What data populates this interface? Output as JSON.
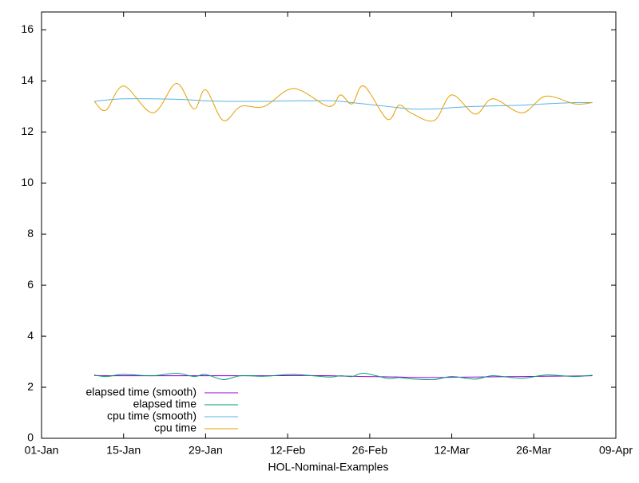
{
  "chart_data": {
    "type": "line",
    "xlabel": "HOL-Nominal-Examples",
    "x": [
      "10-Jan",
      "12-Jan",
      "15-Jan",
      "20-Jan",
      "24-Jan",
      "27-Jan",
      "29-Jan",
      "01-Feb",
      "04-Feb",
      "08-Feb",
      "13-Feb",
      "19-Feb",
      "21-Feb",
      "23-Feb",
      "25-Feb",
      "01-Mar",
      "03-Mar",
      "05-Mar",
      "09-Mar",
      "12-Mar",
      "16-Mar",
      "19-Mar",
      "24-Mar",
      "28-Mar",
      "02-Apr",
      "05-Apr"
    ],
    "series": [
      {
        "name": "elapsed time (smooth)",
        "color": "#9400d3",
        "values": [
          2.46,
          2.45,
          2.45,
          2.45,
          2.45,
          2.45,
          2.45,
          2.45,
          2.45,
          2.45,
          2.46,
          2.45,
          2.44,
          2.43,
          2.42,
          2.41,
          2.4,
          2.39,
          2.38,
          2.39,
          2.4,
          2.41,
          2.42,
          2.43,
          2.44,
          2.45
        ]
      },
      {
        "name": "elapsed time",
        "color": "#009e73",
        "values": [
          2.48,
          2.42,
          2.5,
          2.45,
          2.55,
          2.42,
          2.5,
          2.3,
          2.45,
          2.43,
          2.5,
          2.4,
          2.45,
          2.42,
          2.55,
          2.35,
          2.38,
          2.33,
          2.3,
          2.42,
          2.32,
          2.45,
          2.35,
          2.48,
          2.42,
          2.47
        ]
      },
      {
        "name": "cpu time (smooth)",
        "color": "#56b4e9",
        "values": [
          13.2,
          13.25,
          13.3,
          13.3,
          13.28,
          13.25,
          13.22,
          13.2,
          13.2,
          13.2,
          13.22,
          13.22,
          13.2,
          13.15,
          13.1,
          13.0,
          12.95,
          12.9,
          12.9,
          12.95,
          13.0,
          13.02,
          13.05,
          13.1,
          13.15,
          13.15
        ]
      },
      {
        "name": "cpu time",
        "color": "#e69f00",
        "values": [
          13.2,
          12.85,
          13.8,
          12.75,
          13.9,
          12.9,
          13.65,
          12.45,
          13.0,
          13.0,
          13.7,
          13.0,
          13.45,
          13.1,
          13.8,
          12.5,
          13.05,
          12.75,
          12.45,
          13.45,
          12.7,
          13.3,
          12.75,
          13.4,
          13.1,
          13.15
        ]
      }
    ],
    "xlim": [
      "01-Jan",
      "09-Apr"
    ],
    "xticks": [
      "01-Jan",
      "15-Jan",
      "29-Jan",
      "12-Feb",
      "26-Feb",
      "12-Mar",
      "26-Mar",
      "09-Apr"
    ],
    "ylim": [
      0,
      16.7
    ],
    "yticks": [
      0,
      2,
      4,
      6,
      8,
      10,
      12,
      14,
      16
    ],
    "legend": "lower-left"
  }
}
